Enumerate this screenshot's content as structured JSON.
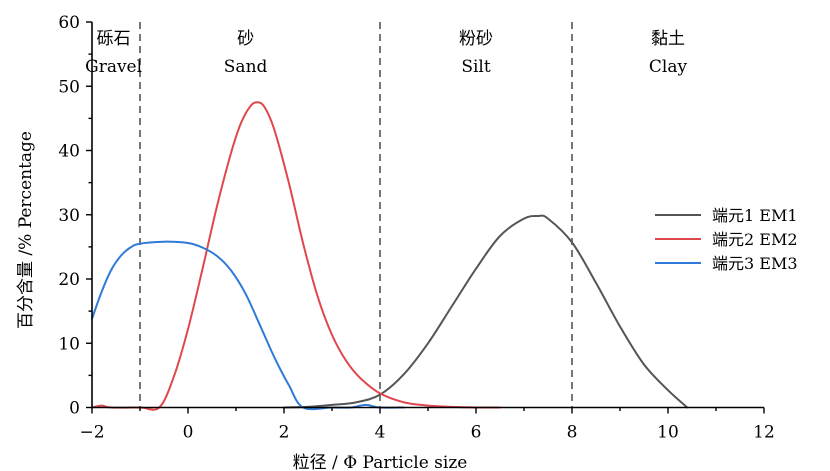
{
  "chart_data": {
    "type": "line",
    "xlabel": "粒径 / Φ  Particle size",
    "ylabel": "百分含量 /%  Percentage",
    "xlim": [
      -2,
      12
    ],
    "ylim": [
      0,
      60
    ],
    "x_ticks": [
      "−2",
      "0",
      "2",
      "4",
      "6",
      "8",
      "10",
      "12"
    ],
    "y_ticks": [
      "0",
      "10",
      "20",
      "30",
      "40",
      "50",
      "60"
    ],
    "grid": false,
    "legend_position": "right",
    "boundaries": [
      -1,
      4,
      8
    ],
    "regions": [
      {
        "cn": "砾石",
        "en": "Gravel",
        "x": -1.55
      },
      {
        "cn": "砂",
        "en": "Sand",
        "x": 1.2
      },
      {
        "cn": "粉砂",
        "en": "Silt",
        "x": 6
      },
      {
        "cn": "黏土",
        "en": "Clay",
        "x": 10
      }
    ],
    "series": [
      {
        "name": "端元1   EM1",
        "color": "#555555",
        "x": [
          2.0,
          2.5,
          3.0,
          3.5,
          4.0,
          4.5,
          5.0,
          5.5,
          6.0,
          6.5,
          7.0,
          7.3,
          7.5,
          8.0,
          8.5,
          9.0,
          9.5,
          10.0,
          10.4
        ],
        "y": [
          0.0,
          0.1,
          0.4,
          0.8,
          2.0,
          5.2,
          10.0,
          15.8,
          21.6,
          26.7,
          29.4,
          29.8,
          29.4,
          25.7,
          19.4,
          12.6,
          6.7,
          2.7,
          0.0
        ]
      },
      {
        "name": "端元2   EM2",
        "color": "#e0474c",
        "x": [
          -2.0,
          -1.8,
          -1.6,
          -1.0,
          -0.6,
          -0.3,
          0.0,
          0.3,
          0.6,
          0.9,
          1.1,
          1.3,
          1.45,
          1.6,
          1.8,
          2.1,
          2.4,
          2.7,
          3.0,
          3.3,
          3.6,
          4.0,
          4.5,
          5.0,
          5.5,
          6.0,
          6.5
        ],
        "y": [
          0.0,
          0.3,
          0.0,
          0.0,
          0.0,
          4.7,
          12.2,
          21.5,
          31.2,
          39.7,
          44.2,
          46.9,
          47.5,
          46.7,
          43.2,
          35.0,
          25.5,
          17.3,
          11.3,
          7.2,
          4.5,
          2.2,
          0.8,
          0.3,
          0.1,
          0.0,
          0.0
        ]
      },
      {
        "name": "端元3   EM3",
        "color": "#2f7ad6",
        "x": [
          -2.0,
          -1.8,
          -1.6,
          -1.4,
          -1.2,
          -1.0,
          -0.5,
          0.0,
          0.3,
          0.6,
          0.9,
          1.2,
          1.5,
          1.8,
          2.1,
          2.4,
          3.0,
          3.4,
          3.7,
          4.0,
          4.5
        ],
        "y": [
          13.8,
          18.0,
          21.4,
          23.6,
          24.9,
          25.5,
          25.8,
          25.6,
          24.9,
          23.6,
          21.3,
          17.7,
          12.8,
          7.8,
          3.5,
          0.0,
          0.0,
          0.0,
          0.4,
          0.0,
          0.0
        ]
      }
    ]
  }
}
